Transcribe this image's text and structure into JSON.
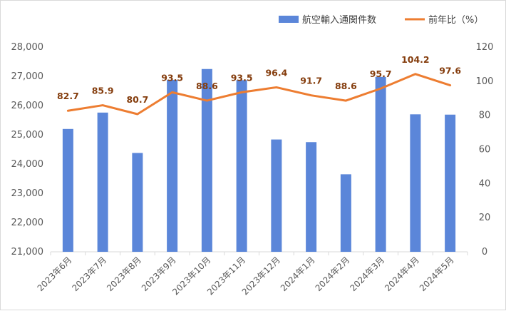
{
  "chart_data": {
    "type": "bar+line",
    "categories": [
      "2023年6月",
      "2023年7月",
      "2023年8月",
      "2023年9月",
      "2023年10月",
      "2023年11月",
      "2023年12月",
      "2024年1月",
      "2024年2月",
      "2024年3月",
      "2024年4月",
      "2024年5月"
    ],
    "series": [
      {
        "name": "航空輸入通関件数",
        "type": "bar",
        "axis": "left",
        "color": "#5b86d9",
        "values": [
          25200,
          25760,
          24380,
          26880,
          27250,
          26870,
          24840,
          24750,
          23650,
          26980,
          25700,
          25690
        ]
      },
      {
        "name": "前年比（%）",
        "type": "line",
        "axis": "right",
        "color": "#ed7d31",
        "values": [
          82.7,
          85.9,
          80.7,
          93.5,
          88.6,
          93.5,
          96.4,
          91.7,
          88.6,
          95.7,
          104.2,
          97.6
        ],
        "labels": [
          "82.7",
          "85.9",
          "80.7",
          "93.5",
          "88.6",
          "93.5",
          "96.4",
          "91.7",
          "88.6",
          "95.7",
          "104.2",
          "97.6"
        ]
      }
    ],
    "left_axis": {
      "min": 21000,
      "max": 28000,
      "step": 1000,
      "tick_labels": [
        "21,000",
        "22,000",
        "23,000",
        "24,000",
        "25,000",
        "26,000",
        "27,000",
        "28,000"
      ]
    },
    "right_axis": {
      "min": 0,
      "max": 120,
      "step": 20,
      "tick_labels": [
        "0",
        "20",
        "40",
        "60",
        "80",
        "100",
        "120"
      ]
    },
    "grid": false,
    "legend_position": "top-right"
  }
}
